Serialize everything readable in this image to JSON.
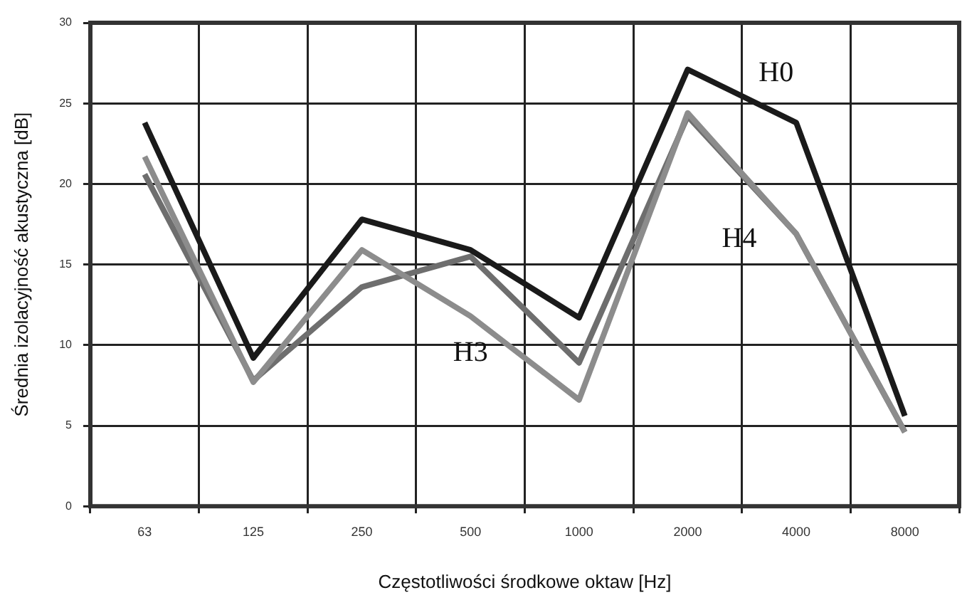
{
  "chart_data": {
    "type": "line",
    "xlabel": "Częstotliwości środkowe oktaw [Hz]",
    "ylabel": "Średnia izolacyjność akustyczna [dB]",
    "categories": [
      "63",
      "125",
      "250",
      "500",
      "1000",
      "2000",
      "4000",
      "8000"
    ],
    "series": [
      {
        "name": "H0",
        "color": "#1a1a1a",
        "values": [
          23.8,
          9.2,
          17.8,
          15.9,
          11.7,
          27.1,
          23.8,
          5.6
        ]
      },
      {
        "name": "H3",
        "color": "#8c8c8c",
        "values": [
          21.7,
          7.7,
          15.9,
          11.8,
          6.6,
          24.4,
          16.9,
          4.6
        ]
      },
      {
        "name": "H4",
        "color": "#6e6e6e",
        "values": [
          20.6,
          7.8,
          13.6,
          15.5,
          8.9,
          24.2,
          16.9,
          4.6
        ]
      }
    ],
    "ylim": [
      0,
      30
    ],
    "yticks": [
      0,
      5,
      10,
      15,
      20,
      25,
      30
    ],
    "grid": true,
    "legend": false,
    "marker": "none",
    "line_style": "solid"
  }
}
